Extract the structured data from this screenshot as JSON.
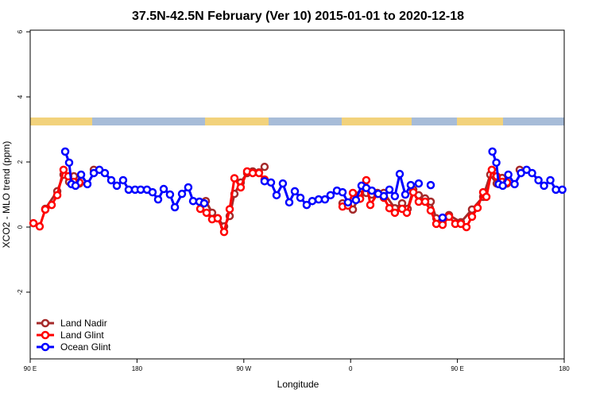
{
  "chart_data": {
    "type": "line",
    "title": "37.5N-42.5N February (Ver 10)   2015-01-01 to 2020-12-18",
    "xlabel": "Longitude",
    "ylabel": "XCO2 - MLO trend (ppm)",
    "xlim": [
      90,
      540
    ],
    "ylim": [
      -4.05,
      6.05
    ],
    "xticks": [
      {
        "value": 90,
        "label": "90 E"
      },
      180,
      {
        "value": 270,
        "label": "90 W"
      },
      {
        "value": 360,
        "label": "0"
      },
      {
        "value": 450,
        "label": "90 E"
      },
      {
        "value": 540,
        "label": "180"
      }
    ],
    "yticks": [
      -2,
      0,
      2,
      4,
      6
    ],
    "legend": "bottom-left",
    "series": [
      {
        "name": "Land Nadir",
        "color": "#a52a2a",
        "x": [
          102.7,
          112.8,
          118.1,
          122.8,
          126.8,
          131.5,
          null,
          143.6,
          null,
          238.0,
          243.3,
          248.0,
          253.4,
          258.1,
          262.1,
          267.4,
          272.8,
          277.5,
          282.8,
          287.5,
          null,
          353.2,
          361.9,
          368.0,
          373.2,
          377.9,
          382.6,
          388.0,
          397.3,
          403.4,
          408.1,
          412.8,
          417.4,
          422.8,
          427.5,
          432.2,
          437.5,
          442.9,
          452.9,
          462.3,
          471.7,
          477.7,
          483.1,
          487.7,
          491.8,
          null,
          502.5
        ],
        "values": [
          0.56,
          1.1,
          1.61,
          1.39,
          1.56,
          1.34,
          null,
          1.76,
          null,
          0.8,
          0.44,
          0.27,
          0.02,
          0.34,
          1.02,
          1.37,
          1.66,
          1.71,
          1.68,
          1.85,
          null,
          0.73,
          0.54,
          1.0,
          1.05,
          1.0,
          1.05,
          1.05,
          0.58,
          0.73,
          0.56,
          1.15,
          0.98,
          0.88,
          0.78,
          0.27,
          0.1,
          0.37,
          0.15,
          0.54,
          0.93,
          1.61,
          1.34,
          1.51,
          1.34,
          null,
          1.76
        ]
      },
      {
        "name": "Land Glint",
        "color": "#ff0000",
        "x": [
          92.7,
          98.0,
          102.7,
          108.1,
          112.8,
          118.1,
          122.1,
          126.8,
          131.5,
          null,
          233.3,
          238.6,
          243.3,
          248.0,
          253.4,
          258.1,
          262.1,
          267.4,
          272.8,
          277.5,
          282.8,
          287.5,
          null,
          353.2,
          357.8,
          361.9,
          368.0,
          373.2,
          376.6,
          382.6,
          388.0,
          392.7,
          397.3,
          403.4,
          407.4,
          412.8,
          417.4,
          422.8,
          427.5,
          432.2,
          437.5,
          442.9,
          448.2,
          452.9,
          457.6,
          462.3,
          467.0,
          471.7,
          474.4,
          479.0,
          483.1,
          487.7,
          491.8
        ],
        "values": [
          0.12,
          0.02,
          0.54,
          0.68,
          0.98,
          1.76,
          1.56,
          1.39,
          1.37,
          null,
          0.56,
          0.44,
          0.24,
          0.27,
          -0.15,
          0.55,
          1.5,
          1.22,
          1.71,
          1.66,
          1.66,
          1.46,
          null,
          0.63,
          0.66,
          1.05,
          0.87,
          1.44,
          0.68,
          1.02,
          0.9,
          0.58,
          0.44,
          0.56,
          0.44,
          1.07,
          0.78,
          0.78,
          0.51,
          0.1,
          0.07,
          0.32,
          0.1,
          0.1,
          0.0,
          0.32,
          0.59,
          1.07,
          0.93,
          1.76,
          1.56,
          1.39,
          1.37
        ]
      },
      {
        "name": "Ocean Glint",
        "color": "#0000ff",
        "x": [
          119.5,
          122.8,
          124.8,
          128.2,
          132.9,
          138.2,
          143.6,
          148.3,
          152.9,
          158.3,
          163.0,
          168.3,
          173.0,
          178.4,
          183.1,
          188.4,
          193.1,
          197.8,
          202.5,
          207.8,
          211.9,
          217.9,
          223.2,
          227.3,
          232.6,
          236.6,
          null,
          287.5,
          292.9,
          297.6,
          302.9,
          308.3,
          313.0,
          317.7,
          323.0,
          327.7,
          333.1,
          338.4,
          343.1,
          348.5,
          353.2,
          357.8,
          364.5,
          369.2,
          373.2,
          377.9,
          383.3,
          388.0,
          392.7,
          397.3,
          401.4,
          406.1,
          410.7,
          417.4,
          null,
          427.5,
          null,
          437.5,
          null,
          479.5,
          482.8,
          484.8,
          488.2,
          492.9,
          498.2,
          503.6,
          508.3,
          512.9,
          518.3,
          523.0,
          528.3,
          533.0,
          538.4
        ],
        "values": [
          2.32,
          1.98,
          1.32,
          1.27,
          1.61,
          1.32,
          1.66,
          1.76,
          1.66,
          1.44,
          1.27,
          1.44,
          1.15,
          1.15,
          1.15,
          1.15,
          1.07,
          0.85,
          1.17,
          1.0,
          0.61,
          1.02,
          1.22,
          0.8,
          0.78,
          0.73,
          null,
          1.41,
          1.37,
          0.98,
          1.34,
          0.76,
          1.1,
          0.9,
          0.68,
          0.8,
          0.85,
          0.85,
          0.98,
          1.12,
          1.07,
          0.76,
          0.83,
          1.27,
          1.2,
          1.12,
          1.02,
          0.95,
          1.15,
          0.95,
          1.63,
          1.0,
          1.29,
          1.34,
          null,
          1.29,
          null,
          0.29,
          null,
          2.32,
          1.98,
          1.32,
          1.27,
          1.61,
          1.32,
          1.66,
          1.76,
          1.66,
          1.44,
          1.27,
          1.44,
          1.15,
          1.15
        ]
      }
    ]
  }
}
